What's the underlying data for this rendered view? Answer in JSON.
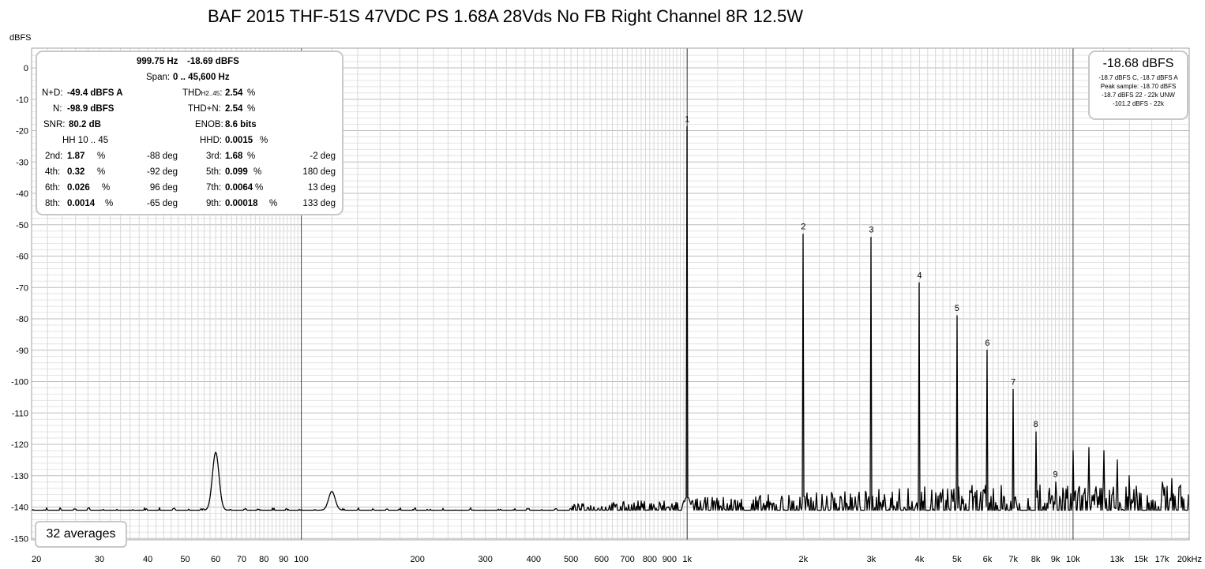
{
  "title": "BAF 2015 THF-51S 47VDC PS 1.68A 28Vds No FB Right Channel 8R 12.5W",
  "y_unit": "dBFS",
  "x_unit": "kHz",
  "info_panel": {
    "fundamental_freq": "999.75 Hz",
    "fundamental_level": "-18.69 dBFS",
    "span_label": "Span:",
    "span_value": "0 .. 45,600 Hz",
    "nd_label": "N+D:",
    "nd_value": "-49.4 dBFS A",
    "thd_label_main": "THD",
    "thd_label_sub": "H2..45",
    "thd_label_colon": ":",
    "thd_value": "2.54",
    "n_label": "N:",
    "n_value": "-98.9 dBFS",
    "thdn_label": "THD+N:",
    "thdn_value": "2.54",
    "snr_label": "SNR:",
    "snr_value": "80.2 dB",
    "enob_label": "ENOB:",
    "enob_value": "8.6 bits",
    "hh_label": "HH 10 .. 45",
    "hhd_label": "HHD:",
    "hhd_value": "0.0015",
    "percent": "%",
    "harmonics": [
      {
        "label": "2nd:",
        "value": "1.87",
        "phase": "-88 deg"
      },
      {
        "label": "3rd:",
        "value": "1.68",
        "phase": "-2 deg"
      },
      {
        "label": "4th:",
        "value": "0.32",
        "phase": "-92 deg"
      },
      {
        "label": "5th:",
        "value": "0.099",
        "phase": "180 deg"
      },
      {
        "label": "6th:",
        "value": "0.026",
        "phase": "96 deg"
      },
      {
        "label": "7th:",
        "value": "0.0064",
        "phase": "13 deg"
      },
      {
        "label": "8th:",
        "value": "0.0014",
        "phase": "-65 deg"
      },
      {
        "label": "9th:",
        "value": "0.00018",
        "phase": "133 deg"
      }
    ]
  },
  "level_panel": {
    "main": "-18.68 dBFS",
    "lines": [
      "-18.7 dBFS C, -18.7 dBFS A",
      "Peak sample: -18.70 dBFS",
      "-18.7 dBFS 22 - 22k UNW",
      "-101.2 dBFS - 22k"
    ]
  },
  "averages_label": "32 averages",
  "chart_data": {
    "type": "line",
    "x_scale": "log",
    "xlim": [
      20,
      20000
    ],
    "ylim": [
      -150,
      5
    ],
    "ylabel": "dBFS",
    "xlabel": "",
    "grid": true,
    "y_ticks": [
      0,
      -10,
      -20,
      -30,
      -40,
      -50,
      -60,
      -70,
      -80,
      -90,
      -100,
      -110,
      -120,
      -130,
      -140,
      -150
    ],
    "x_ticks": [
      {
        "v": 20,
        "label": "20"
      },
      {
        "v": 30,
        "label": "30"
      },
      {
        "v": 40,
        "label": "40"
      },
      {
        "v": 50,
        "label": "50"
      },
      {
        "v": 60,
        "label": "60"
      },
      {
        "v": 70,
        "label": "70"
      },
      {
        "v": 80,
        "label": "80"
      },
      {
        "v": 90,
        "label": "90"
      },
      {
        "v": 100,
        "label": "100"
      },
      {
        "v": 200,
        "label": "200"
      },
      {
        "v": 300,
        "label": "300"
      },
      {
        "v": 400,
        "label": "400"
      },
      {
        "v": 500,
        "label": "500"
      },
      {
        "v": 600,
        "label": "600"
      },
      {
        "v": 700,
        "label": "700"
      },
      {
        "v": 800,
        "label": "800"
      },
      {
        "v": 900,
        "label": "900"
      },
      {
        "v": 1000,
        "label": "1k"
      },
      {
        "v": 2000,
        "label": "2k"
      },
      {
        "v": 3000,
        "label": "3k"
      },
      {
        "v": 4000,
        "label": "4k"
      },
      {
        "v": 5000,
        "label": "5k"
      },
      {
        "v": 6000,
        "label": "6k"
      },
      {
        "v": 7000,
        "label": "7k"
      },
      {
        "v": 8000,
        "label": "8k"
      },
      {
        "v": 9000,
        "label": "9k"
      },
      {
        "v": 10000,
        "label": "10k"
      },
      {
        "v": 13000,
        "label": "13k"
      },
      {
        "v": 15000,
        "label": "15k"
      },
      {
        "v": 17000,
        "label": "17k"
      },
      {
        "v": 20000,
        "label": "20kHz"
      }
    ],
    "peaks": [
      {
        "n": "1",
        "freq": 1000,
        "level": -18.7
      },
      {
        "n": "2",
        "freq": 2000,
        "level": -53
      },
      {
        "n": "3",
        "freq": 3000,
        "level": -54
      },
      {
        "n": "4",
        "freq": 4000,
        "level": -68.5
      },
      {
        "n": "5",
        "freq": 5000,
        "level": -79
      },
      {
        "n": "6",
        "freq": 6000,
        "level": -90
      },
      {
        "n": "7",
        "freq": 7000,
        "level": -102.5
      },
      {
        "n": "8",
        "freq": 8000,
        "level": -116
      },
      {
        "n": "9",
        "freq": 9000,
        "level": -132
      }
    ],
    "minor_peaks": [
      {
        "freq": 10000,
        "level": -122
      },
      {
        "freq": 11000,
        "level": -121
      },
      {
        "freq": 12000,
        "level": -122
      },
      {
        "freq": 13000,
        "level": -125
      },
      {
        "freq": 14000,
        "level": -130
      },
      {
        "freq": 17000,
        "level": -132
      },
      {
        "freq": 18000,
        "level": -131
      },
      {
        "freq": 19000,
        "level": -133
      },
      {
        "freq": 60,
        "level": -122.5
      },
      {
        "freq": 120,
        "level": -135
      }
    ],
    "noise_floor": -141
  }
}
